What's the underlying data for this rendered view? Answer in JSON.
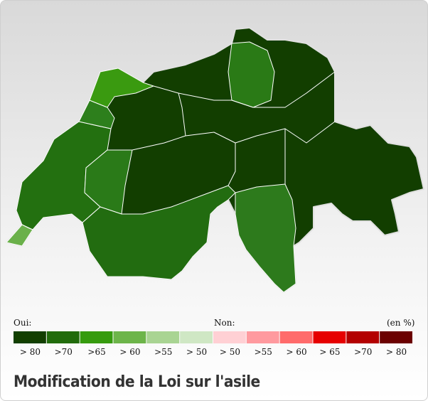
{
  "legend": {
    "oui": "Oui:",
    "non": "Non:",
    "unit": "(en %)",
    "items": [
      {
        "label": "> 80",
        "color": "#123f00"
      },
      {
        "label": ">70",
        "color": "#216b0b"
      },
      {
        "label": ">65",
        "color": "#369b0e"
      },
      {
        "label": "> 60",
        "color": "#6db54a"
      },
      {
        "label": ">55",
        "color": "#a9d493"
      },
      {
        "label": "> 50",
        "color": "#cfe7c4"
      },
      {
        "label": "> 50",
        "color": "#ffd0d4"
      },
      {
        "label": ">55",
        "color": "#ff9a9f"
      },
      {
        "label": "> 60",
        "color": "#ff6b6b"
      },
      {
        "label": "> 65",
        "color": "#e60000"
      },
      {
        "label": ">70",
        "color": "#b30000"
      },
      {
        "label": "> 80",
        "color": "#6b0000"
      }
    ]
  },
  "title": "Modification de la Loi sur l'asile"
}
